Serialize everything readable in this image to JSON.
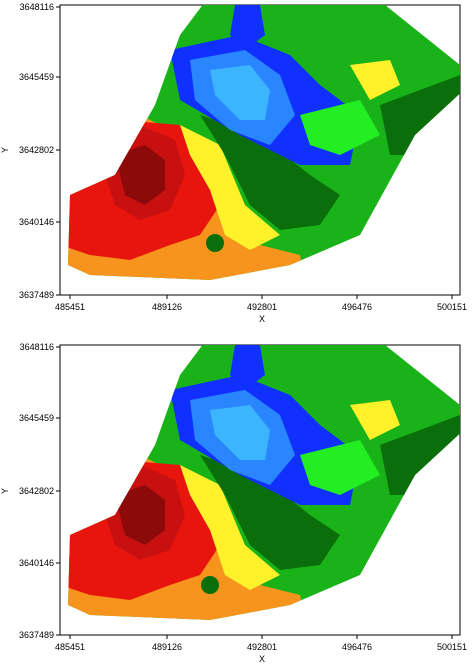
{
  "axes": {
    "x_label": "X",
    "y_label": "Y",
    "x_ticks": [
      "485451",
      "489126",
      "492801",
      "496476",
      "500151"
    ],
    "y_ticks": [
      "3648116",
      "3645459",
      "3642802",
      "3640146",
      "3637489"
    ]
  },
  "colors": {
    "red": "#e8140e",
    "dark_red": "#8c0a0a",
    "mid_red": "#c81010",
    "orange": "#f7941d",
    "yellow": "#fff22a",
    "light_green": "#22ee22",
    "green": "#19b319",
    "dark_green": "#0a6e0a",
    "blue": "#1030ff",
    "light_blue": "#2a86ff",
    "pale_blue": "#3cb4ff"
  },
  "panels": [
    {
      "id": "top"
    },
    {
      "id": "bottom"
    }
  ]
}
